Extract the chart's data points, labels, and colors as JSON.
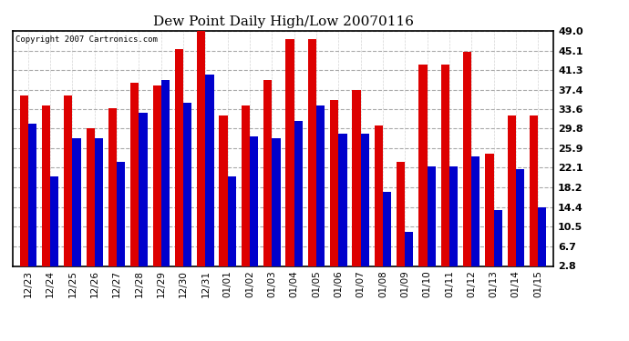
{
  "title": "Dew Point Daily High/Low 20070116",
  "copyright": "Copyright 2007 Cartronics.com",
  "dates": [
    "12/23",
    "12/24",
    "12/25",
    "12/26",
    "12/27",
    "12/28",
    "12/29",
    "12/30",
    "12/31",
    "01/01",
    "01/02",
    "01/03",
    "01/04",
    "01/05",
    "01/06",
    "01/07",
    "01/08",
    "01/09",
    "01/10",
    "01/11",
    "01/12",
    "01/13",
    "01/14",
    "01/15"
  ],
  "high": [
    33.5,
    31.5,
    33.5,
    27.0,
    31.0,
    36.0,
    35.5,
    42.5,
    48.5,
    29.5,
    31.5,
    36.5,
    44.5,
    44.5,
    32.5,
    34.5,
    27.5,
    20.5,
    39.5,
    39.5,
    42.0,
    22.0,
    29.5,
    29.5
  ],
  "low": [
    28.0,
    17.5,
    25.0,
    25.0,
    20.5,
    30.0,
    36.5,
    32.0,
    37.5,
    17.5,
    25.5,
    25.0,
    28.5,
    31.5,
    26.0,
    26.0,
    14.5,
    6.7,
    19.5,
    19.5,
    21.5,
    11.0,
    19.0,
    11.5
  ],
  "high_color": "#dd0000",
  "low_color": "#0000cc",
  "bg_color": "#ffffff",
  "plot_bg_color": "#ffffff",
  "grid_color": "#aaaaaa",
  "yticks": [
    2.8,
    6.7,
    10.5,
    14.4,
    18.2,
    22.1,
    25.9,
    29.8,
    33.6,
    37.4,
    41.3,
    45.1,
    49.0
  ],
  "ylim": [
    2.8,
    49.0
  ],
  "bar_width": 0.38,
  "figsize": [
    6.9,
    3.75
  ],
  "dpi": 100
}
